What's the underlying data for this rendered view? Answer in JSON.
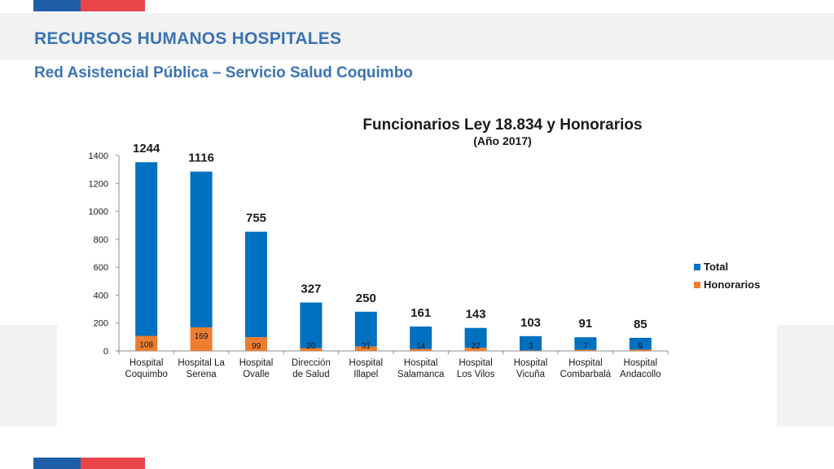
{
  "header": {
    "title": "RECURSOS HUMANOS HOSPITALES",
    "subtitle": "Red Asistencial Pública – Servicio Salud Coquimbo"
  },
  "colors": {
    "brand_blue": "#1f5ea8",
    "brand_red": "#e94549",
    "title_text": "#3a73b5",
    "total_series": "#0070c0",
    "honorarios_series": "#ed7d31"
  },
  "chart_data": {
    "type": "bar",
    "stacked": true,
    "title": "Funcionarios Ley 18.834 y Honorarios",
    "subtitle": "(Año 2017)",
    "xlabel": "",
    "ylabel": "",
    "ylim": [
      0,
      1400
    ],
    "yticks": [
      "0",
      "200",
      "400",
      "600",
      "800",
      "1000",
      "1200",
      "1400"
    ],
    "grid": false,
    "legend_position": "right",
    "categories": [
      [
        "Hospital",
        "Coquimbo"
      ],
      [
        "Hospital La",
        "Serena"
      ],
      [
        "Hospital",
        "Ovalle"
      ],
      [
        "Dirección",
        "de Salud"
      ],
      [
        "Hospital",
        "Illapel"
      ],
      [
        "Hospital",
        "Salamanca"
      ],
      [
        "Hospital",
        "Los Vilos"
      ],
      [
        "Hospital",
        "Vicuña"
      ],
      [
        "Hospital",
        "Combarbalá"
      ],
      [
        "Hospital",
        "Andacollo"
      ]
    ],
    "series": [
      {
        "name": "Honorarios",
        "values": [
          108,
          169,
          99,
          20,
          31,
          14,
          22,
          3,
          7,
          9
        ]
      },
      {
        "name": "Total",
        "values": [
          1244,
          1116,
          755,
          327,
          250,
          161,
          143,
          103,
          91,
          85
        ]
      }
    ],
    "legend": [
      "Total",
      "Honorarios"
    ]
  }
}
